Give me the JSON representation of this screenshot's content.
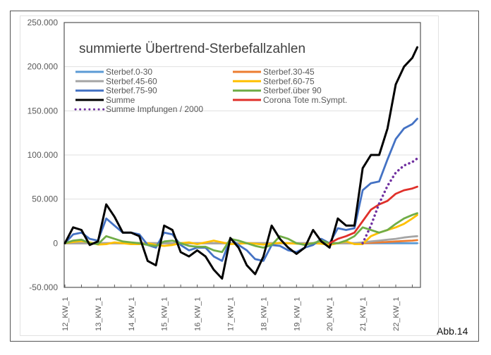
{
  "figure_label": "Abb.14",
  "chart_data": {
    "type": "line",
    "title": "summierte Übertrend-Sterbefallzahlen",
    "xlabel": "",
    "ylabel": "",
    "ylim": [
      -50000,
      250000
    ],
    "yticks": [
      250000,
      200000,
      150000,
      100000,
      50000,
      0,
      -50000
    ],
    "ytick_labels": [
      "250.000",
      "200.000",
      "150.000",
      "100.000",
      "50.000",
      "0",
      "-50.000"
    ],
    "x_unit": "week index (0 = 12_KW_1)",
    "xlim": [
      0,
      10.65
    ],
    "xtick_labels": [
      "12_KW_1",
      "13_KW_1",
      "14_KW_1",
      "15_KW_1",
      "16_KW_1",
      "17_KW_1",
      "18_KW_1",
      "19_KW_1",
      "20_KW_1",
      "21_KW_1",
      "22_KW_1"
    ],
    "grid": "horizontal",
    "legend_placement": "top, inside plot, two columns",
    "x": [
      0,
      0.25,
      0.5,
      0.75,
      1,
      1.25,
      1.5,
      1.75,
      2,
      2.25,
      2.5,
      2.75,
      3,
      3.25,
      3.5,
      3.75,
      4,
      4.25,
      4.5,
      4.75,
      5,
      5.25,
      5.5,
      5.75,
      6,
      6.25,
      6.5,
      6.75,
      7,
      7.25,
      7.5,
      7.75,
      8,
      8.25,
      8.5,
      8.75,
      9,
      9.25,
      9.5,
      9.75,
      10,
      10.25,
      10.5,
      10.65
    ],
    "series": [
      {
        "name": "Sterbef.0-30",
        "color": "#5B9BD5",
        "style": "solid",
        "values": [
          0,
          0,
          0,
          0,
          0,
          0,
          0,
          0,
          0,
          0,
          0,
          0,
          0,
          0,
          0,
          0,
          0,
          0,
          0,
          0,
          0,
          0,
          0,
          0,
          0,
          0,
          0,
          0,
          0,
          0,
          0,
          0,
          0,
          0,
          0,
          0,
          0,
          0,
          0,
          0,
          0,
          0,
          0,
          0
        ]
      },
      {
        "name": "Sterbef.30-45",
        "color": "#ED7D31",
        "style": "solid",
        "values": [
          0,
          0,
          0,
          0,
          0,
          0,
          0,
          0,
          0,
          0,
          0,
          0,
          0,
          0,
          0,
          0,
          0,
          0,
          0,
          0,
          0,
          0,
          0,
          0,
          0,
          0,
          0,
          0,
          0,
          0,
          0,
          0,
          0,
          0,
          0,
          0,
          0,
          500,
          1000,
          1500,
          2000,
          2500,
          3000,
          3500
        ]
      },
      {
        "name": "Sterbef.45-60",
        "color": "#A5A5A5",
        "style": "solid",
        "values": [
          0,
          0,
          0,
          0,
          0,
          0,
          0,
          0,
          0,
          0,
          0,
          0,
          0,
          0,
          0,
          0,
          0,
          0,
          0,
          0,
          0,
          0,
          0,
          0,
          0,
          0,
          0,
          0,
          0,
          0,
          0,
          0,
          0,
          0,
          0,
          0,
          1000,
          2000,
          3000,
          4000,
          5000,
          6500,
          7500,
          8000
        ]
      },
      {
        "name": "Sterbef.60-75",
        "color": "#FFC000",
        "style": "solid",
        "values": [
          0,
          1500,
          2500,
          1000,
          -1500,
          -1000,
          1000,
          0,
          -1000,
          -1000,
          0,
          -2000,
          -3000,
          -2000,
          0,
          1000,
          -1000,
          1000,
          3000,
          1000,
          -1000,
          -500,
          0,
          -500,
          -1500,
          -500,
          500,
          0,
          -500,
          -1000,
          0,
          -500,
          -2000,
          0,
          2000,
          -1000,
          -1000,
          8000,
          12000,
          15000,
          18000,
          22000,
          28000,
          32000
        ]
      },
      {
        "name": "Sterbef.75-90",
        "color": "#4472C4",
        "style": "solid",
        "values": [
          0,
          10000,
          12000,
          5000,
          3000,
          28000,
          20000,
          12000,
          12000,
          10000,
          -2000,
          -5000,
          12000,
          10000,
          -2000,
          -8000,
          -5000,
          -5000,
          -15000,
          -20000,
          5000,
          -2000,
          -8000,
          -18000,
          -20000,
          -2000,
          -3000,
          -8000,
          -10000,
          -5000,
          -2000,
          5000,
          0,
          17000,
          15000,
          17000,
          60000,
          68000,
          70000,
          95000,
          118000,
          130000,
          135000,
          141000
        ]
      },
      {
        "name": "Sterbef.über 90",
        "color": "#70AD47",
        "style": "solid",
        "values": [
          0,
          3000,
          4000,
          0,
          -1000,
          8000,
          5000,
          2000,
          1000,
          0,
          -2000,
          -3000,
          2000,
          3000,
          0,
          -3000,
          -4000,
          -4000,
          -8000,
          -10000,
          5000,
          3000,
          0,
          -3000,
          -5000,
          -2000,
          8000,
          5000,
          0,
          -2000,
          0,
          3000,
          0,
          0,
          3000,
          8000,
          18000,
          15000,
          12000,
          15000,
          22000,
          28000,
          32000,
          34000
        ]
      },
      {
        "name": "Summe",
        "color": "#000000",
        "style": "solid",
        "values": [
          0,
          18000,
          15000,
          -2000,
          2000,
          44000,
          30000,
          12000,
          12000,
          8000,
          -20000,
          -25000,
          20000,
          15000,
          -10000,
          -15000,
          -8000,
          -15000,
          -30000,
          -40000,
          6000,
          -5000,
          -25000,
          -35000,
          -15000,
          20000,
          5000,
          -5000,
          -12000,
          -5000,
          15000,
          2000,
          -5000,
          28000,
          20000,
          20000,
          85000,
          100000,
          100000,
          130000,
          180000,
          200000,
          210000,
          222000
        ]
      },
      {
        "name": "Corona Tote m.Sympt.",
        "color": "#E0302A",
        "style": "solid",
        "values": [
          null,
          null,
          null,
          null,
          null,
          null,
          null,
          null,
          null,
          null,
          null,
          null,
          null,
          null,
          null,
          null,
          null,
          null,
          null,
          null,
          null,
          null,
          null,
          null,
          null,
          null,
          null,
          null,
          null,
          null,
          null,
          null,
          0,
          5000,
          8000,
          12000,
          25000,
          38000,
          44000,
          48000,
          56000,
          60000,
          62000,
          64000
        ]
      },
      {
        "name": "Summe Impfungen / 2000",
        "color": "#7030A0",
        "style": "dotted",
        "values": [
          null,
          null,
          null,
          null,
          null,
          null,
          null,
          null,
          null,
          null,
          null,
          null,
          null,
          null,
          null,
          null,
          null,
          null,
          null,
          null,
          null,
          null,
          null,
          null,
          null,
          null,
          null,
          null,
          null,
          null,
          null,
          null,
          null,
          null,
          null,
          null,
          0,
          20000,
          45000,
          65000,
          80000,
          88000,
          92000,
          96000
        ]
      }
    ]
  }
}
